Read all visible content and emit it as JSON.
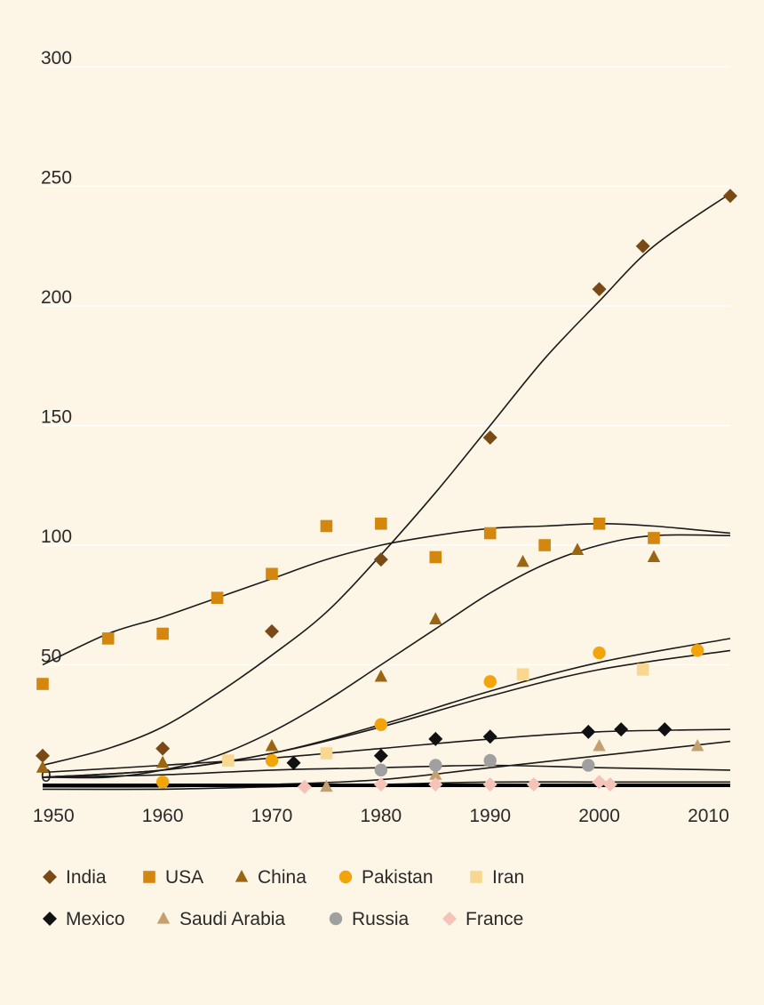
{
  "chart_data": {
    "type": "scatter",
    "title": "",
    "xlabel": "",
    "ylabel": "",
    "xlim": [
      1949,
      2012
    ],
    "ylim": [
      0,
      300
    ],
    "x_ticks": [
      1950,
      1960,
      1970,
      1980,
      1990,
      2000,
      2010
    ],
    "y_ticks": [
      0,
      50,
      100,
      150,
      200,
      250,
      300
    ],
    "grid": "horizontal",
    "legend_position": "bottom",
    "series": [
      {
        "name": "India",
        "marker": "diamond",
        "color": "#7a4a16",
        "points": [
          [
            1949,
            12
          ],
          [
            1960,
            15
          ],
          [
            1970,
            64
          ],
          [
            1980,
            94
          ],
          [
            1990,
            145
          ],
          [
            2000,
            207
          ],
          [
            2004,
            225
          ],
          [
            2012,
            246
          ]
        ],
        "trend": [
          [
            1949,
            8
          ],
          [
            1955,
            15
          ],
          [
            1960,
            24
          ],
          [
            1965,
            38
          ],
          [
            1970,
            54
          ],
          [
            1975,
            72
          ],
          [
            1980,
            96
          ],
          [
            1985,
            122
          ],
          [
            1990,
            150
          ],
          [
            1995,
            178
          ],
          [
            2000,
            202
          ],
          [
            2005,
            225
          ],
          [
            2012,
            247
          ]
        ]
      },
      {
        "name": "USA",
        "marker": "square",
        "color": "#d4870f",
        "points": [
          [
            1949,
            42
          ],
          [
            1955,
            61
          ],
          [
            1960,
            63
          ],
          [
            1965,
            78
          ],
          [
            1970,
            88
          ],
          [
            1975,
            108
          ],
          [
            1980,
            109
          ],
          [
            1985,
            95
          ],
          [
            1990,
            105
          ],
          [
            1995,
            100
          ],
          [
            2000,
            109
          ],
          [
            2005,
            103
          ]
        ],
        "trend": [
          [
            1949,
            50
          ],
          [
            1955,
            63
          ],
          [
            1960,
            70
          ],
          [
            1965,
            78
          ],
          [
            1970,
            86
          ],
          [
            1975,
            94
          ],
          [
            1980,
            100
          ],
          [
            1985,
            104
          ],
          [
            1990,
            107
          ],
          [
            1995,
            108
          ],
          [
            2000,
            109
          ],
          [
            2005,
            108
          ],
          [
            2012,
            105
          ]
        ]
      },
      {
        "name": "China",
        "marker": "triangle",
        "color": "#9a6614",
        "points": [
          [
            1949,
            7
          ],
          [
            1960,
            9
          ],
          [
            1970,
            16
          ],
          [
            1980,
            45
          ],
          [
            1985,
            69
          ],
          [
            1993,
            93
          ],
          [
            1998,
            98
          ],
          [
            2005,
            95
          ]
        ],
        "trend": [
          [
            1949,
            3
          ],
          [
            1955,
            3
          ],
          [
            1960,
            6
          ],
          [
            1965,
            12
          ],
          [
            1970,
            22
          ],
          [
            1975,
            35
          ],
          [
            1980,
            50
          ],
          [
            1985,
            65
          ],
          [
            1990,
            80
          ],
          [
            1995,
            92
          ],
          [
            2000,
            100
          ],
          [
            2005,
            104
          ],
          [
            2012,
            104
          ]
        ]
      },
      {
        "name": "Pakistan",
        "marker": "circle",
        "color": "#f2a50a",
        "points": [
          [
            1960,
            1
          ],
          [
            1970,
            10
          ],
          [
            1980,
            25
          ],
          [
            1990,
            43
          ],
          [
            2000,
            55
          ],
          [
            2009,
            56
          ]
        ],
        "trend": [
          [
            1949,
            3
          ],
          [
            1960,
            6
          ],
          [
            1970,
            13
          ],
          [
            1980,
            25
          ],
          [
            1990,
            39
          ],
          [
            2000,
            51
          ],
          [
            2012,
            61
          ]
        ]
      },
      {
        "name": "Iran",
        "marker": "square",
        "color": "#f8d890",
        "points": [
          [
            1966,
            10
          ],
          [
            1975,
            13
          ],
          [
            1993,
            46
          ],
          [
            2004,
            48
          ]
        ],
        "trend": [
          [
            1949,
            3
          ],
          [
            1960,
            6
          ],
          [
            1970,
            13
          ],
          [
            1980,
            24
          ],
          [
            1990,
            37
          ],
          [
            2000,
            48
          ],
          [
            2012,
            56
          ]
        ]
      },
      {
        "name": "Mexico",
        "marker": "diamond",
        "color": "#111111",
        "points": [
          [
            1972,
            9
          ],
          [
            1980,
            12
          ],
          [
            1985,
            19
          ],
          [
            1990,
            20
          ],
          [
            1999,
            22
          ],
          [
            2002,
            23
          ],
          [
            2006,
            23
          ]
        ],
        "trend": [
          [
            1949,
            5
          ],
          [
            1960,
            8
          ],
          [
            1970,
            11
          ],
          [
            1980,
            15
          ],
          [
            1990,
            19
          ],
          [
            2000,
            22
          ],
          [
            2012,
            23
          ]
        ]
      },
      {
        "name": "Saudi Arabia",
        "marker": "triangle",
        "color": "#c4a070",
        "points": [
          [
            1975,
            -1
          ],
          [
            1985,
            4
          ],
          [
            1990,
            10
          ],
          [
            2000,
            16
          ],
          [
            2009,
            16
          ]
        ],
        "trend": [
          [
            1949,
            -1
          ],
          [
            1960,
            -1
          ],
          [
            1970,
            0
          ],
          [
            1980,
            2
          ],
          [
            1990,
            7
          ],
          [
            2000,
            12
          ],
          [
            2012,
            18
          ]
        ]
      },
      {
        "name": "Russia",
        "marker": "circle",
        "color": "#a0a0a0",
        "points": [
          [
            1980,
            6
          ],
          [
            1985,
            8
          ],
          [
            1990,
            10
          ],
          [
            1999,
            8
          ]
        ],
        "trend": [
          [
            1949,
            3
          ],
          [
            1960,
            4
          ],
          [
            1970,
            6
          ],
          [
            1980,
            7
          ],
          [
            1990,
            8
          ],
          [
            2000,
            7
          ],
          [
            2012,
            6
          ]
        ]
      },
      {
        "name": "France",
        "marker": "diamond",
        "color": "#f5c3b8",
        "points": [
          [
            1973,
            -1
          ],
          [
            1980,
            0
          ],
          [
            1985,
            0
          ],
          [
            1990,
            0
          ],
          [
            1994,
            0
          ],
          [
            2000,
            1
          ],
          [
            2001,
            0
          ]
        ],
        "trend": [
          [
            1949,
            -2
          ],
          [
            1960,
            -2
          ],
          [
            1970,
            -1
          ],
          [
            1980,
            0
          ],
          [
            1990,
            1
          ],
          [
            2000,
            1
          ],
          [
            2012,
            1
          ]
        ]
      }
    ]
  }
}
